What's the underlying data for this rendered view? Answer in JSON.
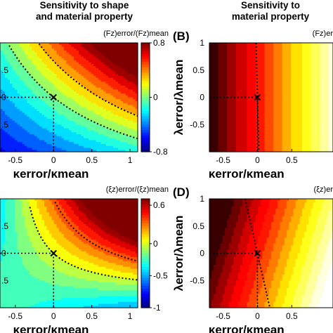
{
  "headers": {
    "left_line1": "Sensitivity to shape",
    "left_line2": "and material property",
    "right_line1": "Sensitivity to",
    "right_line2": "material property"
  },
  "chart_data": [
    {
      "type": "heatmap",
      "panel": "A",
      "colorbar_title": "(Fz)error/(Fz)mean",
      "colorbar_ticks": [
        0.8,
        0,
        -0.8
      ],
      "clim": [
        -0.8,
        0.8
      ],
      "colormap": "jet",
      "xlabel": "κerror/κmean",
      "xlim": [
        -0.7,
        1.1
      ],
      "ylim": [
        -1,
        1
      ],
      "x_ticks": [
        -0.5,
        0,
        0.5,
        1
      ],
      "y_ticks_visible": [
        ".5",
        "0",
        ".5"
      ],
      "marker": {
        "x": 0,
        "y": 0,
        "symbol": "x"
      },
      "annotation": "dashed zero-crossing lines through the marker"
    },
    {
      "type": "heatmap",
      "panel": "B",
      "panel_label": "(B)",
      "colorbar_title": "(Fz)er",
      "colormap": "hot",
      "xlabel": "κerror/κmean",
      "ylabel": "λerror/λmean",
      "xlim": [
        -0.7,
        1.1
      ],
      "ylim": [
        -1,
        1
      ],
      "x_ticks": [
        -0.5,
        0,
        0.5
      ],
      "y_ticks": [
        1,
        0.5,
        0,
        -0.5
      ],
      "marker": {
        "x": 0,
        "y": 0,
        "symbol": "x"
      }
    },
    {
      "type": "heatmap",
      "panel": "C",
      "colorbar_title": "(ξz)error/(ξz)mean",
      "colorbar_ticks": [
        0.6,
        0,
        -0.5,
        -1
      ],
      "clim": [
        -1,
        0.7
      ],
      "colormap": "jet",
      "xlabel": "κerror/κmean",
      "xlim": [
        -0.7,
        1.1
      ],
      "ylim": [
        -1,
        1
      ],
      "x_ticks": [
        -0.5,
        0,
        0.5,
        1
      ],
      "y_ticks_visible": [
        ".5",
        "0",
        ".5"
      ],
      "marker": {
        "x": 0,
        "y": 0,
        "symbol": "x"
      }
    },
    {
      "type": "heatmap",
      "panel": "D",
      "panel_label": "(D)",
      "colorbar_title": "(ξz)er",
      "colormap": "hot",
      "xlabel": "κerror/κmean",
      "ylabel": "λerror/λmean",
      "xlim": [
        -0.7,
        1.1
      ],
      "ylim": [
        -1,
        1
      ],
      "x_ticks": [
        -0.5,
        0,
        0.5
      ],
      "y_ticks": [
        1,
        0.5,
        0,
        -0.5
      ],
      "marker": {
        "x": 0,
        "y": 0,
        "symbol": "x"
      }
    }
  ]
}
